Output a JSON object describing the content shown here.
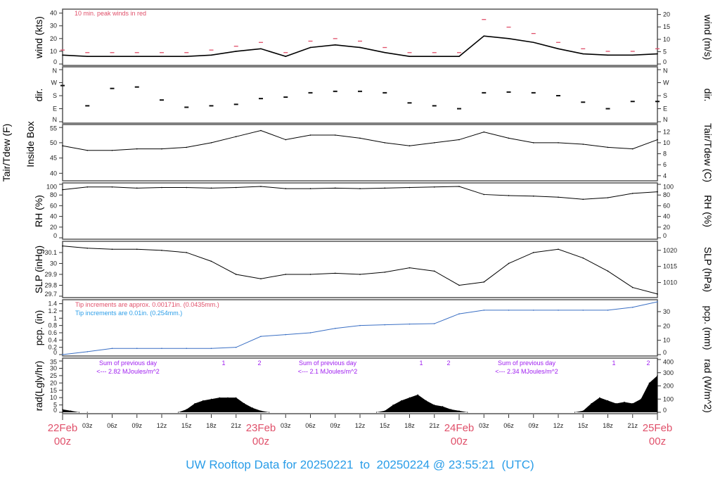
{
  "title": "UW Rooftop Data for 20250221  to  20250224 @ 23:55:21  (UTC)",
  "colors": {
    "title": "#2a9de8",
    "date": "#e0506a",
    "peak": "#e0506a",
    "pcp": "#3a6fc4",
    "rad_note": "#a020f0",
    "line": "#000000"
  },
  "x_axis": {
    "hours_range": [
      0,
      72
    ],
    "hour_labels": [
      "03z",
      "06z",
      "09z",
      "12z",
      "15z",
      "18z",
      "21z"
    ],
    "dates": [
      {
        "day": "22Feb",
        "hour": "00z"
      },
      {
        "day": "23Feb",
        "hour": "00z"
      },
      {
        "day": "24Feb",
        "hour": "00z"
      },
      {
        "day": "25Feb",
        "hour": "00z"
      }
    ]
  },
  "chart_data": [
    {
      "type": "line",
      "name_key": "wind",
      "ylabel": "wind (kts)",
      "ylabel_right": "wind (m/s)",
      "ylim": [
        0,
        42
      ],
      "ticks": [
        0,
        10,
        20,
        30,
        40
      ],
      "right_ticks": [
        0,
        5,
        10,
        15,
        20
      ],
      "right_factor": 1.944,
      "annotation": "10 min. peak winds in red",
      "x": [
        0,
        3,
        6,
        9,
        12,
        15,
        18,
        21,
        24,
        27,
        30,
        33,
        36,
        39,
        42,
        45,
        48,
        51,
        54,
        57,
        60,
        63,
        66,
        69,
        72
      ],
      "values": [
        7,
        6,
        6,
        6,
        6,
        6,
        7,
        10,
        12,
        6,
        13,
        15,
        13,
        9,
        6,
        6,
        6,
        22,
        20,
        17,
        12,
        8,
        7,
        7,
        8
      ],
      "peak_values": [
        11,
        9,
        9,
        9,
        9,
        9,
        11,
        14,
        17,
        9,
        18,
        20,
        18,
        13,
        9,
        9,
        9,
        35,
        29,
        24,
        17,
        12,
        10,
        10,
        12
      ]
    },
    {
      "type": "scatter",
      "name_key": "dir",
      "ylabel": "dir.",
      "ylabel_right": "dir.",
      "ylim": [
        0,
        360
      ],
      "tick_values": [
        0,
        90,
        180,
        270,
        360
      ],
      "tick_labels": [
        "N",
        "E",
        "S",
        "W",
        "N"
      ],
      "x": [
        0,
        3,
        6,
        9,
        12,
        15,
        18,
        21,
        24,
        27,
        30,
        33,
        36,
        39,
        42,
        45,
        48,
        51,
        54,
        57,
        60,
        63,
        66,
        69,
        72
      ],
      "values": [
        250,
        110,
        230,
        240,
        150,
        100,
        110,
        120,
        160,
        170,
        200,
        210,
        210,
        200,
        130,
        110,
        90,
        200,
        205,
        200,
        180,
        135,
        90,
        140,
        140
      ]
    },
    {
      "type": "line",
      "name_key": "tair",
      "ylabel": "Tair/Tdew (F)",
      "ylabel2": "Inside Box",
      "ylabel_right": "Tair/Tdew (C)",
      "ylim": [
        38,
        55.5
      ],
      "ticks": [
        40,
        45,
        50,
        55
      ],
      "right_ticks": [
        4,
        6,
        8,
        10,
        12
      ],
      "x": [
        0,
        3,
        6,
        9,
        12,
        15,
        18,
        21,
        24,
        27,
        30,
        33,
        36,
        39,
        42,
        45,
        48,
        51,
        54,
        57,
        60,
        63,
        66,
        69,
        72
      ],
      "values": [
        49,
        47.5,
        47.5,
        48,
        48,
        48.5,
        50,
        52,
        54,
        51,
        52.5,
        52.5,
        51.5,
        50,
        49,
        50,
        51,
        53.5,
        51.5,
        50,
        50,
        49.5,
        48.5,
        48,
        51
      ]
    },
    {
      "type": "line",
      "name_key": "rh",
      "ylabel": "RH (%)",
      "ylabel_right": "RH (%)",
      "ylim": [
        0,
        100
      ],
      "ticks": [
        0,
        20,
        40,
        60,
        80,
        100
      ],
      "right_ticks": [
        0,
        20,
        40,
        60,
        80,
        100
      ],
      "x": [
        0,
        3,
        6,
        9,
        12,
        15,
        18,
        21,
        24,
        27,
        30,
        33,
        36,
        39,
        42,
        45,
        48,
        51,
        54,
        57,
        60,
        63,
        66,
        69,
        72
      ],
      "values": [
        90,
        95,
        95,
        93,
        94,
        94,
        93,
        94,
        96,
        92,
        92,
        93,
        92,
        93,
        94,
        95,
        96,
        81,
        79,
        78,
        76,
        72,
        75,
        83,
        86
      ]
    },
    {
      "type": "line",
      "name_key": "slp",
      "ylabel": "SLP (inHg)",
      "ylabel_right": "SLP (hPa)",
      "ylim": [
        29.7,
        30.19
      ],
      "ticks": [
        29.7,
        29.8,
        29.9,
        30.0,
        30.1
      ],
      "right_ticks": [
        1010,
        1015,
        1020
      ],
      "x": [
        0,
        3,
        6,
        9,
        12,
        15,
        18,
        21,
        24,
        27,
        30,
        33,
        36,
        39,
        42,
        45,
        48,
        51,
        54,
        57,
        60,
        63,
        66,
        69,
        72
      ],
      "values": [
        30.16,
        30.14,
        30.13,
        30.13,
        30.12,
        30.1,
        30.02,
        29.9,
        29.86,
        29.9,
        29.9,
        29.91,
        29.9,
        29.92,
        29.96,
        29.93,
        29.8,
        29.83,
        30.0,
        30.1,
        30.13,
        30.05,
        29.93,
        29.78,
        29.72
      ]
    },
    {
      "type": "line",
      "name_key": "pcp",
      "ylabel": "pcp. (in)",
      "ylabel_right": "pcp. (mm)",
      "ylim": [
        0,
        1.47
      ],
      "ticks": [
        0,
        0.2,
        0.4,
        0.6,
        0.8,
        1.0,
        1.2,
        1.4
      ],
      "right_ticks": [
        0,
        10,
        20,
        30
      ],
      "notes": [
        "Tip increments are approx. 0.00171in. (0.0435mm.)",
        "Tip increments are 0.01in. (0.254mm.)"
      ],
      "x": [
        0,
        3,
        6,
        9,
        12,
        15,
        18,
        21,
        24,
        27,
        30,
        33,
        36,
        39,
        42,
        45,
        48,
        51,
        54,
        57,
        60,
        63,
        66,
        69,
        72
      ],
      "values": [
        0,
        0.08,
        0.17,
        0.17,
        0.17,
        0.17,
        0.17,
        0.2,
        0.5,
        0.55,
        0.6,
        0.72,
        0.8,
        0.82,
        0.84,
        0.85,
        1.12,
        1.22,
        1.22,
        1.22,
        1.22,
        1.22,
        1.22,
        1.3,
        1.45
      ]
    },
    {
      "type": "area",
      "name_key": "rad",
      "ylabel": "rad(Lgly/hr)",
      "ylabel_right": "rad (W/m^2)",
      "ylim": [
        0,
        36
      ],
      "ticks": [
        0,
        5,
        10,
        15,
        20,
        25,
        30,
        35
      ],
      "right_ticks": [
        0,
        100,
        200,
        300,
        400
      ],
      "day_notes": [
        {
          "label": "Sum of previous day",
          "value": "<--- 2.82 MJoules/m^2"
        },
        {
          "label": "Sum of previous day",
          "value": "<--- 2.1 MJoules/m^2"
        },
        {
          "label": "Sum of previous day",
          "value": "<--- 2.34 MJoules/m^2"
        }
      ],
      "markers": [
        "1",
        "2"
      ],
      "x": [
        0,
        1,
        2,
        3,
        14,
        15,
        16,
        17,
        18,
        19,
        20,
        21,
        22,
        23,
        24,
        25,
        38,
        39,
        40,
        41,
        42,
        43,
        44,
        45,
        46,
        47,
        48,
        49,
        62,
        63,
        64,
        65,
        66,
        67,
        68,
        69,
        70,
        71,
        72
      ],
      "values": [
        2,
        1,
        0,
        0,
        0,
        2,
        6,
        8,
        9,
        10,
        10,
        10,
        6,
        3,
        1,
        0,
        0,
        1,
        5,
        8,
        10,
        12,
        8,
        5,
        4,
        2,
        1,
        0,
        0,
        1,
        6,
        10,
        8,
        6,
        7,
        6,
        9,
        20,
        25
      ]
    }
  ]
}
